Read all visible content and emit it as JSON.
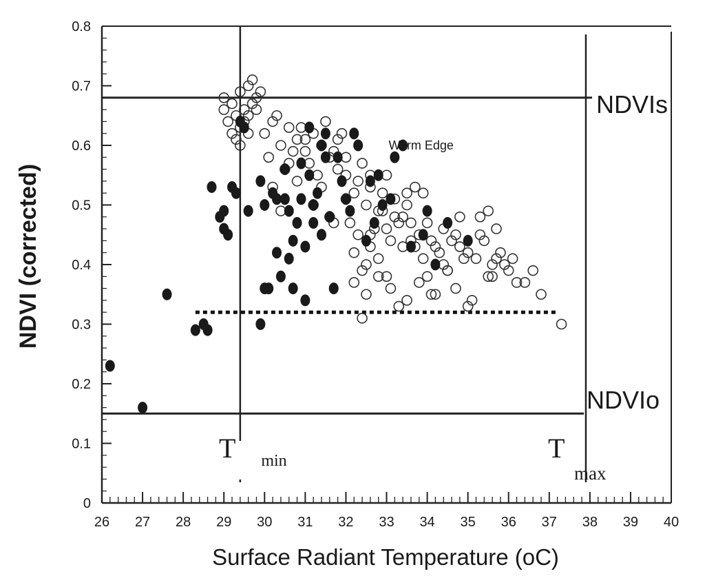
{
  "chart_data": {
    "type": "scatter",
    "title": "",
    "xlabel": "Surface Radiant Temperature (oC)",
    "ylabel": "NDVI (corrected)",
    "xlim": [
      26,
      40
    ],
    "ylim": [
      0,
      0.8
    ],
    "x_ticks": [
      "26",
      "27",
      "28",
      "29",
      "30",
      "31",
      "32",
      "33",
      "34",
      "35",
      "36",
      "37",
      "38",
      "39",
      "40"
    ],
    "y_ticks": [
      "0",
      "0.1",
      "0.2",
      "0.3",
      "0.4",
      "0.5",
      "0.6",
      "0.7",
      "0.8"
    ],
    "grid": false,
    "legend": "none",
    "reference_lines": {
      "ndvi_s": {
        "label": "NDVIs",
        "y": 0.68
      },
      "ndvi_0": {
        "label": "NDVIo",
        "y": 0.15
      },
      "t_min": {
        "label": "Tmin",
        "label_main": "T",
        "label_sub": "min",
        "x": 29.4
      },
      "t_max": {
        "label": "Tmax",
        "label_main": "T",
        "label_sub": "max",
        "x": 37.9
      },
      "threshold": {
        "y": 0.32,
        "x_range": [
          28.3,
          37.2
        ],
        "style": "dotted"
      }
    },
    "annotations": [
      {
        "text": "Warm Edge",
        "x": 33.85,
        "y": 0.593
      }
    ],
    "series": [
      {
        "marker": "open-circle",
        "x": [
          29.0,
          29.2,
          29.4,
          29.6,
          29.8,
          29.1,
          29.3,
          29.5,
          29.7,
          29.9,
          29.2,
          29.4,
          29.6,
          29.0,
          29.8,
          29.3,
          29.5,
          29.7,
          29.6,
          29.4,
          30.0,
          30.2,
          30.4,
          30.6,
          30.8,
          31.0,
          31.2,
          31.4,
          31.6,
          31.8,
          30.1,
          30.3,
          30.5,
          30.7,
          30.9,
          31.1,
          31.3,
          31.5,
          31.7,
          31.9,
          30.2,
          30.6,
          31.0,
          31.4,
          31.8,
          30.4,
          30.8,
          31.2,
          31.6,
          32.0,
          32.0,
          32.2,
          32.4,
          32.6,
          32.8,
          33.0,
          33.2,
          33.4,
          32.1,
          32.3,
          32.5,
          32.7,
          32.9,
          33.1,
          33.3,
          33.5,
          32.2,
          32.6,
          33.0,
          33.4,
          32.4,
          32.8,
          33.2,
          33.6,
          32.0,
          32.5,
          33.0,
          33.5,
          32.3,
          32.9,
          33.7,
          32.6,
          33.6,
          33.8,
          34.0,
          34.2,
          34.4,
          34.6,
          34.8,
          35.0,
          33.9,
          34.1,
          34.3,
          34.5,
          34.7,
          34.9,
          33.7,
          34.0,
          34.4,
          34.8,
          35.2,
          35.4,
          35.6,
          35.8,
          36.0,
          35.3,
          35.5,
          35.7,
          35.9,
          36.2,
          32.2,
          32.5,
          32.8,
          33.1,
          33.5,
          33.8,
          34.2,
          34.7,
          35.1,
          35.6,
          36.4,
          36.8,
          37.3,
          36.6,
          35.0,
          34.5,
          32.4,
          33.3,
          34.1,
          35.3,
          36.1,
          35.7,
          31.7,
          32.6,
          33.9,
          35.5
        ],
        "y": [
          0.66,
          0.67,
          0.69,
          0.7,
          0.68,
          0.64,
          0.65,
          0.66,
          0.67,
          0.69,
          0.62,
          0.63,
          0.65,
          0.68,
          0.66,
          0.61,
          0.64,
          0.71,
          0.62,
          0.6,
          0.62,
          0.64,
          0.6,
          0.63,
          0.61,
          0.59,
          0.62,
          0.6,
          0.58,
          0.61,
          0.58,
          0.65,
          0.56,
          0.59,
          0.63,
          0.57,
          0.55,
          0.64,
          0.59,
          0.62,
          0.53,
          0.57,
          0.61,
          0.53,
          0.56,
          0.49,
          0.54,
          0.5,
          0.48,
          0.58,
          0.55,
          0.52,
          0.57,
          0.53,
          0.49,
          0.55,
          0.51,
          0.48,
          0.47,
          0.45,
          0.5,
          0.46,
          0.52,
          0.44,
          0.47,
          0.5,
          0.42,
          0.43,
          0.46,
          0.43,
          0.39,
          0.41,
          0.48,
          0.44,
          0.51,
          0.4,
          0.38,
          0.52,
          0.54,
          0.49,
          0.53,
          0.45,
          0.47,
          0.45,
          0.47,
          0.43,
          0.46,
          0.44,
          0.48,
          0.42,
          0.41,
          0.44,
          0.42,
          0.39,
          0.45,
          0.41,
          0.43,
          0.38,
          0.4,
          0.43,
          0.41,
          0.44,
          0.4,
          0.42,
          0.39,
          0.45,
          0.38,
          0.41,
          0.4,
          0.37,
          0.37,
          0.35,
          0.38,
          0.36,
          0.34,
          0.37,
          0.35,
          0.36,
          0.34,
          0.38,
          0.37,
          0.35,
          0.3,
          0.39,
          0.33,
          0.39,
          0.31,
          0.33,
          0.35,
          0.48,
          0.41,
          0.46,
          0.47,
          0.55,
          0.52,
          0.49
        ]
      },
      {
        "marker": "filled-circle",
        "x": [
          26.2,
          27.0,
          27.6,
          28.3,
          28.5,
          28.7,
          28.6,
          28.9,
          29.0,
          29.1,
          29.2,
          29.3,
          29.5,
          29.9,
          30.0,
          30.1,
          30.2,
          30.3,
          30.4,
          30.5,
          30.6,
          30.7,
          30.8,
          30.9,
          31.0,
          31.1,
          31.2,
          31.4,
          31.5,
          31.6,
          31.8,
          32.0,
          32.3,
          32.6,
          32.9,
          33.2,
          30.0,
          30.6,
          31.0,
          31.3,
          30.5,
          31.7,
          32.2,
          32.8,
          33.4,
          34.0,
          34.5,
          35.0,
          29.6,
          30.9,
          31.2,
          31.9,
          32.5,
          33.1,
          34.2,
          31.4,
          30.3,
          29.9,
          32.1,
          33.6,
          30.7,
          31.5,
          32.7,
          29.4,
          29.0,
          33.9,
          31.1
        ],
        "y": [
          0.23,
          0.16,
          0.35,
          0.29,
          0.3,
          0.53,
          0.29,
          0.48,
          0.46,
          0.45,
          0.53,
          0.52,
          0.63,
          0.3,
          0.5,
          0.36,
          0.52,
          0.42,
          0.38,
          0.51,
          0.49,
          0.36,
          0.47,
          0.51,
          0.34,
          0.55,
          0.5,
          0.45,
          0.62,
          0.48,
          0.58,
          0.51,
          0.6,
          0.54,
          0.5,
          0.58,
          0.36,
          0.41,
          0.43,
          0.52,
          0.56,
          0.36,
          0.62,
          0.55,
          0.6,
          0.49,
          0.47,
          0.44,
          0.49,
          0.57,
          0.47,
          0.54,
          0.44,
          0.51,
          0.4,
          0.6,
          0.51,
          0.54,
          0.49,
          0.43,
          0.44,
          0.58,
          0.47,
          0.64,
          0.49,
          0.45,
          0.63
        ]
      }
    ]
  }
}
